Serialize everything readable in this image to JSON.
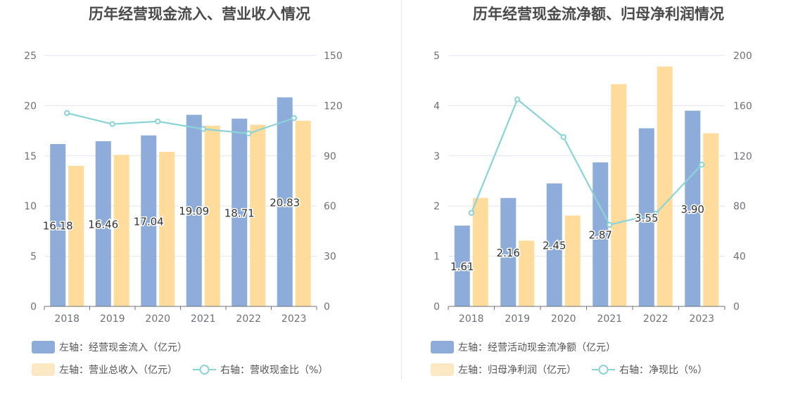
{
  "chart_data": [
    {
      "type": "bar",
      "title": "历年经营现金流入、营业收入情况",
      "categories": [
        "2018",
        "2019",
        "2020",
        "2021",
        "2022",
        "2023"
      ],
      "ylim_left": [
        0,
        25
      ],
      "yticks_left": [
        "0",
        "5",
        "10",
        "15",
        "20",
        "25"
      ],
      "ylim_right": [
        0,
        150
      ],
      "yticks_right": [
        "0",
        "30",
        "60",
        "90",
        "120",
        "150"
      ],
      "series": [
        {
          "name": "左轴：经营现金流入（亿元）",
          "axis": "left",
          "kind": "bar",
          "color": "#8eacda",
          "values": [
            16.18,
            16.46,
            17.04,
            19.09,
            18.71,
            20.83
          ],
          "labels": [
            "16.18",
            "16.46",
            "17.04",
            "19.09",
            "18.71",
            "20.83"
          ]
        },
        {
          "name": "左轴：营业总收入（亿元）",
          "axis": "left",
          "kind": "bar",
          "color": "#ffdb9c",
          "legend_color": "#fde8c4",
          "values": [
            14.0,
            15.1,
            15.4,
            18.0,
            18.1,
            18.5
          ]
        },
        {
          "name": "右轴：营收现金比（%）",
          "axis": "right",
          "kind": "line",
          "color": "#8ad4d8",
          "values": [
            115.6,
            109.0,
            110.6,
            106.1,
            103.4,
            112.6
          ]
        }
      ],
      "grid": true,
      "legend_position": "bottom"
    },
    {
      "type": "bar",
      "title": "历年经营现金流净额、归母净利润情况",
      "categories": [
        "2018",
        "2019",
        "2020",
        "2021",
        "2022",
        "2023"
      ],
      "ylim_left": [
        0,
        5
      ],
      "yticks_left": [
        "0",
        "1",
        "2",
        "3",
        "4",
        "5"
      ],
      "ylim_right": [
        0,
        200
      ],
      "yticks_right": [
        "0",
        "40",
        "80",
        "120",
        "160",
        "200"
      ],
      "series": [
        {
          "name": "左轴：经营活动现金流净额（亿元）",
          "axis": "left",
          "kind": "bar",
          "color": "#8eacda",
          "values": [
            1.61,
            2.16,
            2.45,
            2.87,
            3.55,
            3.9
          ],
          "labels": [
            "1.61",
            "2.16",
            "2.45",
            "2.87",
            "3.55",
            "3.90"
          ]
        },
        {
          "name": "左轴：归母净利润（亿元）",
          "axis": "left",
          "kind": "bar",
          "color": "#ffdb9c",
          "legend_color": "#fde8c4",
          "values": [
            2.16,
            1.31,
            1.81,
            4.43,
            4.78,
            3.45
          ]
        },
        {
          "name": "右轴：净现比（%）",
          "axis": "right",
          "kind": "line",
          "color": "#8ad4d8",
          "values": [
            74.5,
            165.0,
            135.0,
            65.0,
            74.0,
            113.0
          ]
        }
      ],
      "grid": true,
      "legend_position": "bottom"
    }
  ]
}
